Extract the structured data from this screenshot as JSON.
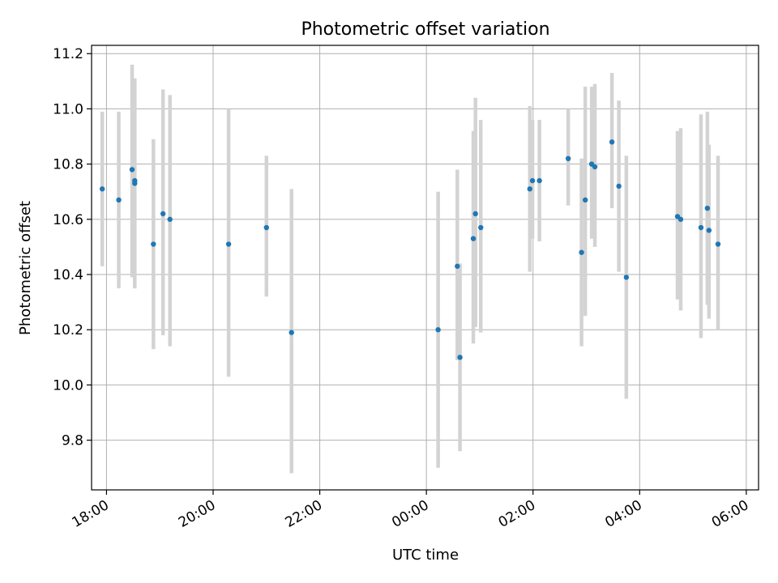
{
  "chart_data": {
    "type": "scatter",
    "title": "Photometric offset variation",
    "xlabel": "UTC time",
    "ylabel": "Photometric offset",
    "grid": true,
    "xlim_hours": [
      17.72,
      30.23
    ],
    "ylim": [
      9.62,
      11.23
    ],
    "x_tick_hours": [
      18,
      20,
      22,
      24,
      26,
      28,
      30
    ],
    "x_tick_labels": [
      "18:00",
      "20:00",
      "22:00",
      "00:00",
      "02:00",
      "04:00",
      "06:00"
    ],
    "y_ticks": [
      9.8,
      10.0,
      10.2,
      10.4,
      10.6,
      10.8,
      11.0,
      11.2
    ],
    "y_tick_labels": [
      "9.8",
      "10.0",
      "10.2",
      "10.4",
      "10.6",
      "10.8",
      "11.0",
      "11.2"
    ],
    "colors": {
      "point": "#1f77b4",
      "errorbar": "#d3d3d3",
      "grid": "#b0b0b0"
    },
    "points": [
      {
        "time": "17:55",
        "x": 17.92,
        "y": 10.71,
        "lo": 10.43,
        "hi": 10.99
      },
      {
        "time": "18:14",
        "x": 18.23,
        "y": 10.67,
        "lo": 10.35,
        "hi": 10.99
      },
      {
        "time": "18:29",
        "x": 18.48,
        "y": 10.78,
        "lo": 10.39,
        "hi": 11.16
      },
      {
        "time": "18:32",
        "x": 18.53,
        "y": 10.74,
        "lo": 10.35,
        "hi": 11.11
      },
      {
        "time": "18:32",
        "x": 18.53,
        "y": 10.73,
        "lo": 10.35,
        "hi": 11.11
      },
      {
        "time": "18:53",
        "x": 18.88,
        "y": 10.51,
        "lo": 10.13,
        "hi": 10.89
      },
      {
        "time": "19:04",
        "x": 19.06,
        "y": 10.62,
        "lo": 10.18,
        "hi": 11.07
      },
      {
        "time": "19:11",
        "x": 19.19,
        "y": 10.6,
        "lo": 10.14,
        "hi": 11.05
      },
      {
        "time": "20:17",
        "x": 20.29,
        "y": 10.51,
        "lo": 10.03,
        "hi": 11.0
      },
      {
        "time": "21:00",
        "x": 21.0,
        "y": 10.57,
        "lo": 10.32,
        "hi": 10.83
      },
      {
        "time": "21:28",
        "x": 21.47,
        "y": 10.19,
        "lo": 9.68,
        "hi": 10.71
      },
      {
        "time": "00:13",
        "x": 24.22,
        "y": 10.2,
        "lo": 9.7,
        "hi": 10.7
      },
      {
        "time": "00:35",
        "x": 24.58,
        "y": 10.43,
        "lo": 10.09,
        "hi": 10.78
      },
      {
        "time": "00:38",
        "x": 24.63,
        "y": 10.1,
        "lo": 9.76,
        "hi": 10.44
      },
      {
        "time": "00:53",
        "x": 24.88,
        "y": 10.53,
        "lo": 10.15,
        "hi": 10.92
      },
      {
        "time": "00:55",
        "x": 24.92,
        "y": 10.62,
        "lo": 10.21,
        "hi": 11.04
      },
      {
        "time": "01:01",
        "x": 25.02,
        "y": 10.57,
        "lo": 10.19,
        "hi": 10.96
      },
      {
        "time": "01:56",
        "x": 25.94,
        "y": 10.71,
        "lo": 10.41,
        "hi": 11.01
      },
      {
        "time": "01:59",
        "x": 25.99,
        "y": 10.74,
        "lo": 10.53,
        "hi": 10.96
      },
      {
        "time": "02:07",
        "x": 26.12,
        "y": 10.74,
        "lo": 10.52,
        "hi": 10.96
      },
      {
        "time": "02:39",
        "x": 26.66,
        "y": 10.82,
        "lo": 10.65,
        "hi": 11.0
      },
      {
        "time": "02:55",
        "x": 26.91,
        "y": 10.48,
        "lo": 10.14,
        "hi": 10.82
      },
      {
        "time": "02:59",
        "x": 26.98,
        "y": 10.67,
        "lo": 10.25,
        "hi": 11.08
      },
      {
        "time": "03:06",
        "x": 27.1,
        "y": 10.8,
        "lo": 10.53,
        "hi": 11.08
      },
      {
        "time": "03:09",
        "x": 27.16,
        "y": 10.79,
        "lo": 10.5,
        "hi": 11.09
      },
      {
        "time": "03:29",
        "x": 27.48,
        "y": 10.88,
        "lo": 10.64,
        "hi": 11.13
      },
      {
        "time": "03:37",
        "x": 27.61,
        "y": 10.72,
        "lo": 10.41,
        "hi": 11.03
      },
      {
        "time": "03:45",
        "x": 27.75,
        "y": 10.39,
        "lo": 9.95,
        "hi": 10.83
      },
      {
        "time": "04:43",
        "x": 28.71,
        "y": 10.61,
        "lo": 10.31,
        "hi": 10.92
      },
      {
        "time": "04:46",
        "x": 28.77,
        "y": 10.6,
        "lo": 10.27,
        "hi": 10.93
      },
      {
        "time": "05:09",
        "x": 29.15,
        "y": 10.57,
        "lo": 10.17,
        "hi": 10.98
      },
      {
        "time": "05:16",
        "x": 29.27,
        "y": 10.64,
        "lo": 10.29,
        "hi": 10.99
      },
      {
        "time": "05:18",
        "x": 29.3,
        "y": 10.56,
        "lo": 10.24,
        "hi": 10.87
      },
      {
        "time": "05:28",
        "x": 29.47,
        "y": 10.51,
        "lo": 10.2,
        "hi": 10.83
      }
    ]
  }
}
